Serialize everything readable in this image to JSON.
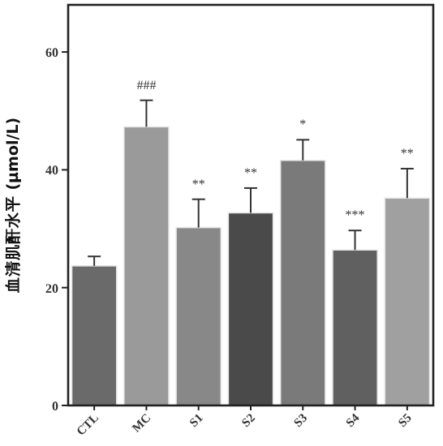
{
  "chart_data": {
    "type": "bar",
    "ylabel": "血清肌酐水平 (μmol/L)",
    "categories": [
      "CTL",
      "MC",
      "S1",
      "S2",
      "S3",
      "S4",
      "S5"
    ],
    "values": [
      23.7,
      47.3,
      30.2,
      32.7,
      41.6,
      26.4,
      35.2
    ],
    "colors": [
      "#6a6a6a",
      "#9a9a9a",
      "#888888",
      "#4a4a4a",
      "#7a7a7a",
      "#606060",
      "#a0a0a0"
    ],
    "errors": [
      [
        23.7,
        25.3
      ],
      [
        47.3,
        51.8
      ],
      [
        30.2,
        35.0
      ],
      [
        32.7,
        36.9
      ],
      [
        41.6,
        45.1
      ],
      [
        26.4,
        29.7
      ],
      [
        35.2,
        40.2
      ]
    ],
    "ylim": [
      0,
      68
    ],
    "yticks": [
      0,
      20,
      40,
      60
    ],
    "grid": false,
    "annotations": [
      "###",
      "**",
      "**",
      "*",
      "***",
      "**"
    ]
  }
}
